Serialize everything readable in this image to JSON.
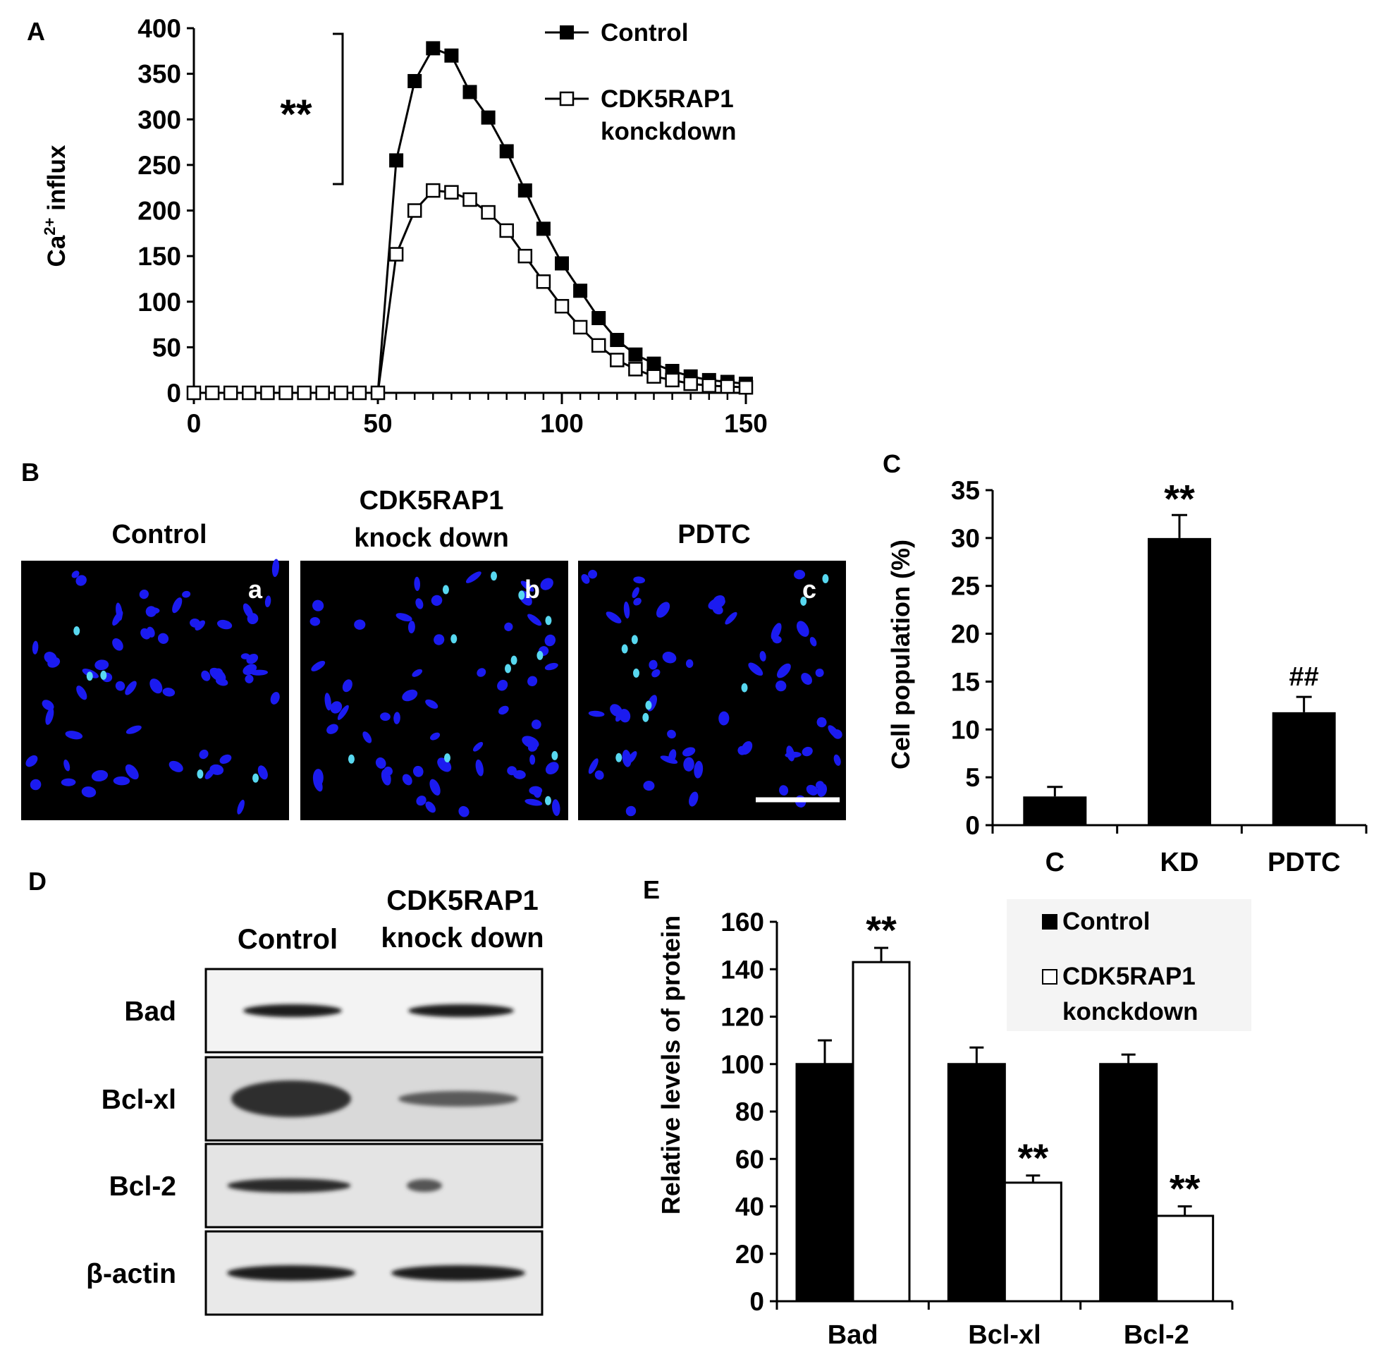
{
  "panel_labels": {
    "A": "A",
    "B": "B",
    "C": "C",
    "D": "D",
    "E": "E"
  },
  "chart_data": [
    {
      "panel": "A",
      "type": "line",
      "xlabel": "",
      "ylabel_parts": {
        "pre": "Ca",
        "sup": "2+",
        "post": " influx"
      },
      "xlim": [
        0,
        150
      ],
      "ylim": [
        0,
        400
      ],
      "x_ticks": [
        "0",
        "50",
        "100",
        "150"
      ],
      "y_ticks": [
        "0",
        "50",
        "100",
        "150",
        "200",
        "250",
        "300",
        "350",
        "400"
      ],
      "significance": "**",
      "series": [
        {
          "name": "Control",
          "marker": "filled-square",
          "x": [
            0,
            5,
            10,
            15,
            20,
            25,
            30,
            35,
            40,
            45,
            50,
            55,
            60,
            65,
            70,
            75,
            80,
            85,
            90,
            95,
            100,
            105,
            110,
            115,
            120,
            125,
            130,
            135,
            140,
            145,
            150
          ],
          "y": [
            0,
            0,
            0,
            0,
            0,
            0,
            0,
            0,
            0,
            0,
            0,
            255,
            342,
            378,
            370,
            330,
            302,
            265,
            222,
            180,
            142,
            112,
            82,
            58,
            42,
            32,
            24,
            18,
            14,
            12,
            10
          ]
        },
        {
          "name": "CDK5RAP1 konckdown",
          "marker": "open-square",
          "x": [
            0,
            5,
            10,
            15,
            20,
            25,
            30,
            35,
            40,
            45,
            50,
            55,
            60,
            65,
            70,
            75,
            80,
            85,
            90,
            95,
            100,
            105,
            110,
            115,
            120,
            125,
            130,
            135,
            140,
            145,
            150
          ],
          "y": [
            0,
            0,
            0,
            0,
            0,
            0,
            0,
            0,
            0,
            0,
            0,
            152,
            200,
            222,
            220,
            212,
            198,
            178,
            150,
            122,
            95,
            72,
            52,
            36,
            26,
            18,
            14,
            10,
            8,
            7,
            6
          ]
        }
      ],
      "legend": {
        "position": "top-right",
        "labels": [
          "Control",
          "CDK5RAP1",
          "konckdown"
        ]
      }
    },
    {
      "panel": "C",
      "type": "bar",
      "ylabel": "Cell population (%)",
      "ylim": [
        0,
        35
      ],
      "y_ticks": [
        "0",
        "5",
        "10",
        "15",
        "20",
        "25",
        "30",
        "35"
      ],
      "categories": [
        "C",
        "KD",
        "PDTC"
      ],
      "values": [
        3,
        30,
        11.8
      ],
      "errors": [
        1,
        2.4,
        1.6
      ],
      "annotations": [
        "",
        "**",
        "##"
      ]
    },
    {
      "panel": "E",
      "type": "bar",
      "ylabel": "Relative levels of protein",
      "ylim": [
        0,
        160
      ],
      "y_ticks": [
        "0",
        "20",
        "40",
        "60",
        "80",
        "100",
        "120",
        "140",
        "160"
      ],
      "categories": [
        "Bad",
        "Bcl-xl",
        "Bcl-2"
      ],
      "series": [
        {
          "name": "Control",
          "color": "#000000",
          "values": [
            100,
            100,
            100
          ],
          "errors": [
            10,
            7,
            4
          ]
        },
        {
          "name": "CDK5RAP1 konckdown",
          "color": "#ffffff",
          "values": [
            143,
            50,
            36
          ],
          "errors": [
            6,
            3,
            4
          ]
        }
      ],
      "annotations": [
        [
          "",
          "**"
        ],
        [
          "",
          "**"
        ],
        [
          "",
          "**"
        ]
      ],
      "legend": {
        "position": "top-right",
        "labels": [
          "Control",
          "CDK5RAP1",
          "konckdown"
        ]
      }
    }
  ],
  "panel_b": {
    "titles": [
      {
        "lines": [
          "Control"
        ]
      },
      {
        "lines": [
          "CDK5RAP1",
          "knock down"
        ]
      },
      {
        "lines": [
          "PDTC"
        ]
      }
    ],
    "sublabels": [
      "a",
      "b",
      "c"
    ],
    "nucleus_color": "#1b1bf0",
    "bright_nucleus_color": "#58d8f0"
  },
  "panel_d": {
    "column_headers": [
      {
        "lines": [
          "Control"
        ]
      },
      {
        "lines": [
          "CDK5RAP1",
          "knock down"
        ]
      }
    ],
    "rows": [
      "Bad",
      "Bcl-xl",
      "Bcl-2",
      "β-actin"
    ]
  }
}
